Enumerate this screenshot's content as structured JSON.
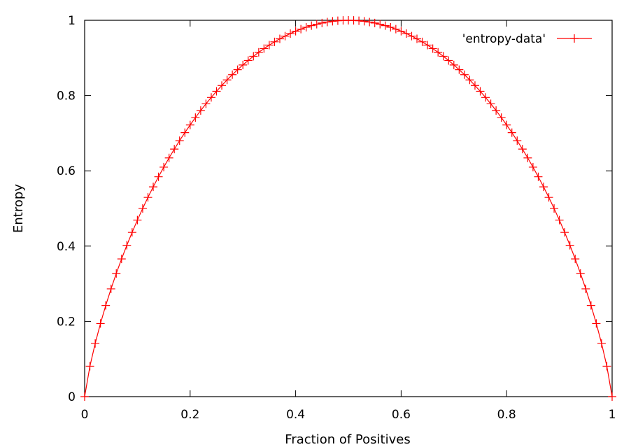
{
  "chart_data": {
    "type": "line",
    "xlabel": "Fraction of Positives",
    "ylabel": "Entropy",
    "xlim": [
      0,
      1
    ],
    "ylim": [
      0,
      1
    ],
    "x_ticks": [
      "0",
      "0.2",
      "0.4",
      "0.6",
      "0.8",
      "1"
    ],
    "y_ticks": [
      "0",
      "0.2",
      "0.4",
      "0.6",
      "0.8",
      "1"
    ],
    "grid": false,
    "legend_position": "top-right",
    "series": [
      {
        "name": "'entropy-data'",
        "color": "#ff0000",
        "marker": "plus",
        "x": [
          0,
          0.01,
          0.02,
          0.03,
          0.04,
          0.05,
          0.06,
          0.07,
          0.08,
          0.09,
          0.1,
          0.11,
          0.12,
          0.13,
          0.14,
          0.15,
          0.16,
          0.17,
          0.18,
          0.19,
          0.2,
          0.21,
          0.22,
          0.23,
          0.24,
          0.25,
          0.26,
          0.27,
          0.28,
          0.29,
          0.3,
          0.31,
          0.32,
          0.33,
          0.34,
          0.35,
          0.36,
          0.37,
          0.38,
          0.39,
          0.4,
          0.41,
          0.42,
          0.43,
          0.44,
          0.45,
          0.46,
          0.47,
          0.48,
          0.49,
          0.5,
          0.51,
          0.52,
          0.53,
          0.54,
          0.55,
          0.56,
          0.57,
          0.58,
          0.59,
          0.6,
          0.61,
          0.62,
          0.63,
          0.64,
          0.65,
          0.66,
          0.67,
          0.68,
          0.69,
          0.7,
          0.71,
          0.72,
          0.73,
          0.74,
          0.75,
          0.76,
          0.77,
          0.78,
          0.79,
          0.8,
          0.81,
          0.82,
          0.83,
          0.84,
          0.85,
          0.86,
          0.87,
          0.88,
          0.89,
          0.9,
          0.91,
          0.92,
          0.93,
          0.94,
          0.95,
          0.96,
          0.97,
          0.98,
          0.99,
          1
        ],
        "y": [
          0,
          0.0808,
          0.1414,
          0.1944,
          0.2423,
          0.2864,
          0.3274,
          0.3659,
          0.4022,
          0.4365,
          0.469,
          0.4999,
          0.5294,
          0.5574,
          0.5842,
          0.6098,
          0.6343,
          0.6577,
          0.6801,
          0.7015,
          0.7219,
          0.7415,
          0.7602,
          0.778,
          0.795,
          0.8113,
          0.8267,
          0.8415,
          0.8555,
          0.8687,
          0.8813,
          0.8932,
          0.9044,
          0.9149,
          0.9248,
          0.9341,
          0.9427,
          0.9507,
          0.958,
          0.9648,
          0.971,
          0.9765,
          0.9815,
          0.9858,
          0.9896,
          0.9928,
          0.9954,
          0.9974,
          0.9988,
          0.9997,
          1.0,
          0.9997,
          0.9988,
          0.9974,
          0.9954,
          0.9928,
          0.9896,
          0.9858,
          0.9815,
          0.9765,
          0.971,
          0.9648,
          0.958,
          0.9507,
          0.9427,
          0.9341,
          0.9248,
          0.9149,
          0.9044,
          0.8932,
          0.8813,
          0.8687,
          0.8555,
          0.8415,
          0.8267,
          0.8113,
          0.795,
          0.778,
          0.7602,
          0.7415,
          0.7219,
          0.7015,
          0.6801,
          0.6577,
          0.6343,
          0.6098,
          0.5842,
          0.5574,
          0.5294,
          0.4999,
          0.469,
          0.4365,
          0.4022,
          0.3659,
          0.3274,
          0.2864,
          0.2423,
          0.1944,
          0.1414,
          0.0808,
          0
        ]
      }
    ]
  }
}
